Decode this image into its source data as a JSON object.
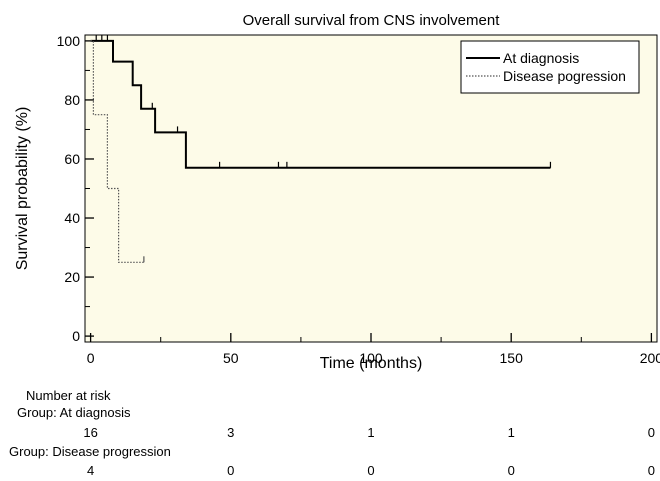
{
  "chart_data": {
    "type": "line",
    "title": "Overall survival from CNS involvement",
    "xlabel": "Time (months)",
    "ylabel": "Survival probability (%)",
    "xlim": [
      -2,
      202
    ],
    "ylim": [
      -2,
      102
    ],
    "xticks": [
      0,
      50,
      100,
      150,
      200
    ],
    "yticks": [
      0,
      20,
      40,
      60,
      80,
      100
    ],
    "background": "#fdfbe8",
    "legend": "top-right",
    "series": [
      {
        "name": "At diagnosis",
        "style": "solid",
        "color": "#000000",
        "steps": [
          [
            0,
            100
          ],
          [
            8,
            100
          ],
          [
            8,
            93
          ],
          [
            15,
            93
          ],
          [
            15,
            85
          ],
          [
            18,
            85
          ],
          [
            18,
            77
          ],
          [
            23,
            77
          ],
          [
            23,
            69
          ],
          [
            34,
            69
          ],
          [
            34,
            57
          ],
          [
            164,
            57
          ]
        ],
        "censored": [
          [
            2,
            100
          ],
          [
            4,
            100
          ],
          [
            6,
            100
          ],
          [
            22,
            77
          ],
          [
            31,
            69
          ],
          [
            46,
            57
          ],
          [
            67,
            57
          ],
          [
            70,
            57
          ],
          [
            164,
            57
          ]
        ]
      },
      {
        "name": "Disease pogression",
        "style": "dotted",
        "color": "#555555",
        "steps": [
          [
            0,
            100
          ],
          [
            1,
            100
          ],
          [
            1,
            75
          ],
          [
            6,
            75
          ],
          [
            6,
            50
          ],
          [
            10,
            50
          ],
          [
            10,
            25
          ],
          [
            19,
            25
          ]
        ],
        "censored": [
          [
            19,
            25
          ]
        ]
      }
    ]
  },
  "risk_table": {
    "header": "Number at risk",
    "times": [
      0,
      50,
      100,
      150,
      200
    ],
    "groups": [
      {
        "label": "Group: At diagnosis",
        "counts": [
          "16",
          "3",
          "1",
          "1",
          "0"
        ]
      },
      {
        "label": "Group: Disease progression",
        "counts": [
          "4",
          "0",
          "0",
          "0",
          "0"
        ]
      }
    ]
  }
}
